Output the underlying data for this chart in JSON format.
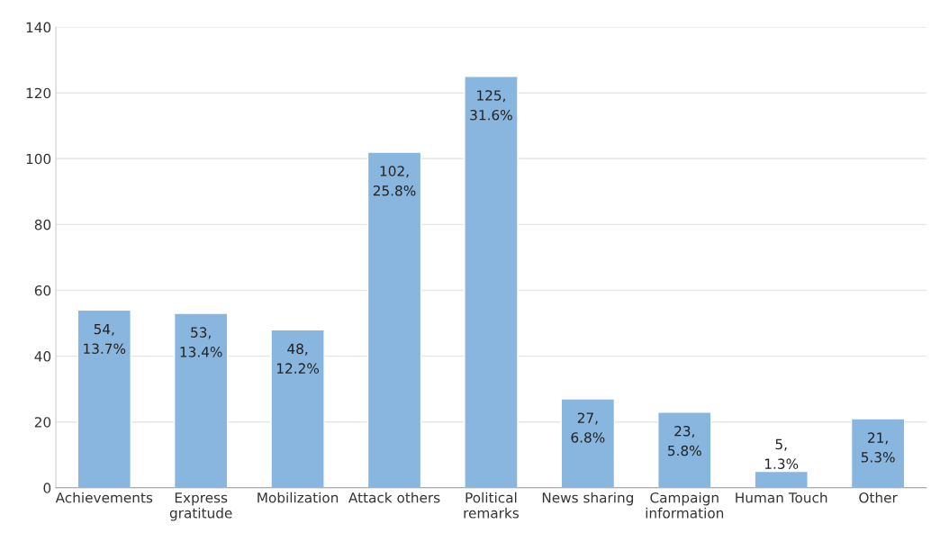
{
  "chart_data": {
    "type": "bar",
    "categories": [
      "Achievements",
      "Express\ngratitude",
      "Mobilization",
      "Attack others",
      "Political\nremarks",
      "News sharing",
      "Campaign\ninformation",
      "Human Touch",
      "Other"
    ],
    "values": [
      54,
      53,
      48,
      102,
      125,
      27,
      23,
      5,
      21
    ],
    "value_labels": [
      "54,\n13.7%",
      "53,\n13.4%",
      "48,\n12.2%",
      "102,\n25.8%",
      "125,\n31.6%",
      "27,\n6.8%",
      "23,\n5.8%",
      "5,\n1.3%",
      "21,\n5.3%"
    ],
    "color": "#89b6de",
    "ylim": [
      0,
      140
    ],
    "yticks": [
      0,
      20,
      40,
      60,
      80,
      100,
      120,
      140
    ],
    "grid": "y"
  }
}
